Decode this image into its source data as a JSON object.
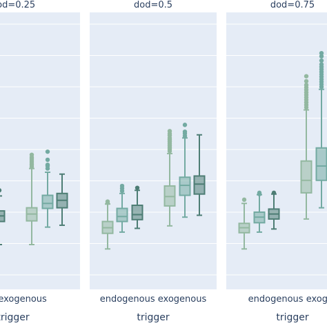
{
  "chart_data": [
    {
      "type": "box",
      "title": "dod=0.25",
      "xlabel": "trigger",
      "ylabel": "",
      "categories": [
        "endogenous",
        "exogenous"
      ],
      "visible_category_labels": [
        "ous",
        "exogenous"
      ],
      "group_colors": [
        "#93b8a0",
        "#73aaa2",
        "#4d7d74"
      ],
      "boxes": [
        {
          "category": "endogenous",
          "group": 3,
          "whisker_low": 0.0,
          "q1": 0.37,
          "median": 0.46,
          "q3": 0.54,
          "whisker_high": 0.78,
          "outliers": [
            0.87
          ]
        },
        {
          "category": "exogenous",
          "group": 1,
          "whisker_low": 0.0,
          "q1": 0.38,
          "median": 0.49,
          "q3": 0.59,
          "whisker_high": 1.22,
          "outliers": [
            1.25,
            1.28,
            1.31,
            1.34,
            1.37,
            1.4,
            1.44
          ]
        },
        {
          "category": "exogenous",
          "group": 2,
          "whisker_low": 0.28,
          "q1": 0.58,
          "median": 0.66,
          "q3": 0.79,
          "whisker_high": 1.16,
          "outliers": [
            1.22,
            1.26,
            1.28,
            1.36,
            1.49
          ]
        },
        {
          "category": "exogenous",
          "group": 3,
          "whisker_low": 0.31,
          "q1": 0.59,
          "median": 0.71,
          "q3": 0.82,
          "whisker_high": 1.13,
          "outliers": []
        }
      ]
    },
    {
      "type": "box",
      "title": "dod=0.5",
      "xlabel": "trigger",
      "ylabel": "",
      "categories": [
        "endogenous",
        "exogenous"
      ],
      "group_colors": [
        "#93b8a0",
        "#73aaa2",
        "#4d7d74"
      ],
      "boxes": [
        {
          "category": "endogenous",
          "group": 1,
          "whisker_low": -0.07,
          "q1": 0.18,
          "median": 0.27,
          "q3": 0.37,
          "whisker_high": 0.65,
          "outliers": [
            0.67,
            0.69
          ]
        },
        {
          "category": "endogenous",
          "group": 2,
          "whisker_low": 0.2,
          "q1": 0.37,
          "median": 0.45,
          "q3": 0.58,
          "whisker_high": 0.82,
          "outliers": [
            0.86,
            0.9,
            0.94
          ]
        },
        {
          "category": "endogenous",
          "group": 3,
          "whisker_low": 0.26,
          "q1": 0.4,
          "median": 0.48,
          "q3": 0.63,
          "whisker_high": 0.87,
          "outliers": [
            0.91
          ]
        },
        {
          "category": "exogenous",
          "group": 1,
          "whisker_low": 0.3,
          "q1": 0.62,
          "median": 0.77,
          "q3": 0.94,
          "whisker_high": 1.46,
          "outliers": [
            1.5,
            1.53,
            1.56,
            1.59,
            1.62,
            1.65,
            1.68,
            1.71,
            1.75,
            1.78,
            1.82
          ]
        },
        {
          "category": "exogenous",
          "group": 2,
          "whisker_low": 0.44,
          "q1": 0.79,
          "median": 0.95,
          "q3": 1.08,
          "whisker_high": 1.71,
          "outliers": [
            1.74,
            1.78,
            1.81,
            1.92
          ]
        },
        {
          "category": "exogenous",
          "group": 3,
          "whisker_low": 0.47,
          "q1": 0.81,
          "median": 0.97,
          "q3": 1.1,
          "whisker_high": 1.76,
          "outliers": []
        }
      ]
    },
    {
      "type": "box",
      "title": "dod=0.75",
      "xlabel": "trigger",
      "ylabel": "",
      "categories": [
        "endogenous",
        "exogenous"
      ],
      "visible_category_labels": [
        "endogenous",
        "exoger"
      ],
      "group_colors": [
        "#93b8a0",
        "#73aaa2",
        "#4d7d74"
      ],
      "boxes": [
        {
          "category": "endogenous",
          "group": 1,
          "whisker_low": -0.07,
          "q1": 0.19,
          "median": 0.27,
          "q3": 0.34,
          "whisker_high": 0.66,
          "outliers": [
            0.72
          ]
        },
        {
          "category": "endogenous",
          "group": 2,
          "whisker_low": 0.2,
          "q1": 0.35,
          "median": 0.44,
          "q3": 0.52,
          "whisker_high": 0.8,
          "outliers": [
            0.81,
            0.83
          ]
        },
        {
          "category": "endogenous",
          "group": 3,
          "whisker_low": 0.25,
          "q1": 0.41,
          "median": 0.49,
          "q3": 0.57,
          "whisker_high": 0.81,
          "outliers": [
            0.83
          ]
        },
        {
          "category": "exogenous",
          "group": 1,
          "whisker_low": 0.41,
          "q1": 0.83,
          "median": 1.03,
          "q3": 1.34,
          "whisker_high": 2.16,
          "outliers": [
            2.2,
            2.24,
            2.28,
            2.32,
            2.36,
            2.4,
            2.44,
            2.48,
            2.52,
            2.56,
            2.62,
            2.7
          ]
        },
        {
          "category": "exogenous",
          "group": 2,
          "whisker_low": 0.59,
          "q1": 1.03,
          "median": 1.26,
          "q3": 1.55,
          "whisker_high": 2.49,
          "outliers": [
            2.53,
            2.57,
            2.61,
            2.65,
            2.69,
            2.73,
            2.77,
            2.81,
            2.85,
            2.89,
            2.95,
            3.02,
            3.07
          ]
        },
        {
          "category": "exogenous",
          "group": 3,
          "whisker_low": null,
          "q1": null,
          "median": null,
          "q3": null,
          "whisker_high": null,
          "outliers": []
        }
      ]
    }
  ]
}
